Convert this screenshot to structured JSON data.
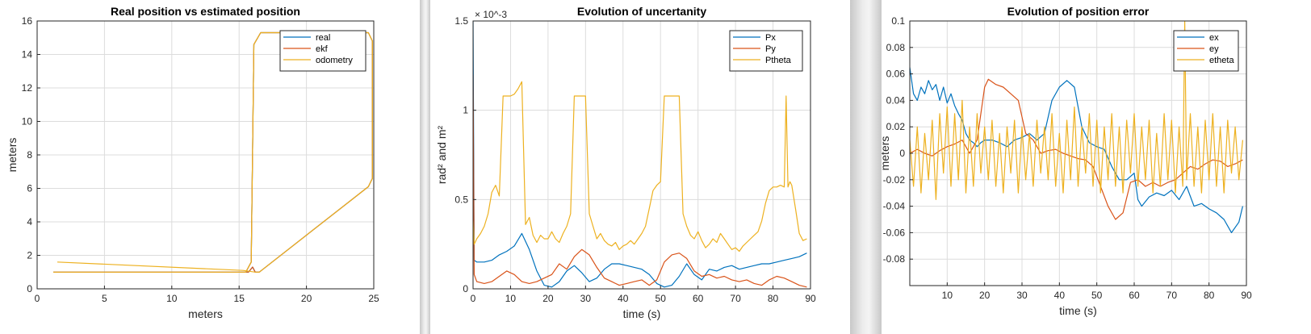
{
  "colors": {
    "blue": "#0072BD",
    "orange": "#D95319",
    "yellow": "#EDB120"
  },
  "chart_data": [
    {
      "type": "line",
      "title": "Real position vs estimated position",
      "xlabel": "meters",
      "ylabel": "meters",
      "xlim": [
        0,
        25
      ],
      "ylim": [
        0,
        16
      ],
      "xticks": [
        0,
        5,
        10,
        15,
        20,
        25
      ],
      "yticks": [
        0,
        2,
        4,
        6,
        8,
        10,
        12,
        14,
        16
      ],
      "xtick_labels": [
        "0",
        "5",
        "10",
        "15",
        "20",
        "25"
      ],
      "ytick_labels": [
        "0",
        "2",
        "4",
        "6",
        "8",
        "10",
        "12",
        "14",
        "16"
      ],
      "grid": true,
      "legend_position": "top-right",
      "series": [
        {
          "name": "real",
          "color": "#0072BD",
          "x": [
            1.2,
            15.5,
            15.9,
            16.1,
            16.6,
            24.6,
            24.9,
            24.9,
            24.6,
            16.5,
            16.2,
            16.0,
            15.7,
            1.2
          ],
          "y": [
            1.0,
            1.0,
            1.6,
            14.6,
            15.3,
            15.3,
            14.8,
            6.6,
            6.1,
            1.0,
            1.0,
            1.3,
            1.0,
            1.0
          ]
        },
        {
          "name": "ekf",
          "color": "#D95319",
          "x": [
            1.2,
            15.5,
            15.9,
            16.1,
            16.6,
            24.6,
            24.9,
            24.9,
            24.6,
            16.5,
            16.2,
            16.0,
            15.7,
            1.2
          ],
          "y": [
            1.0,
            1.0,
            1.6,
            14.6,
            15.3,
            15.3,
            14.8,
            6.6,
            6.1,
            1.0,
            1.0,
            1.3,
            1.0,
            1.0
          ]
        },
        {
          "name": "odometry",
          "color": "#EDB120",
          "x": [
            1.2,
            15.5,
            15.9,
            16.1,
            16.6,
            24.6,
            24.9,
            24.9,
            24.6,
            16.5,
            16.2,
            15.3,
            1.5
          ],
          "y": [
            1.0,
            1.0,
            1.6,
            14.6,
            15.3,
            15.3,
            14.8,
            6.6,
            6.1,
            1.0,
            1.0,
            1.1,
            1.6
          ]
        }
      ]
    },
    {
      "type": "line",
      "title": "Evolution of uncertanity",
      "xlabel": "time (s)",
      "ylabel": "rad² and m²",
      "y_exponent": "× 10^-3",
      "xlim": [
        0,
        90
      ],
      "ylim": [
        0,
        0.0015
      ],
      "xticks": [
        0,
        10,
        20,
        30,
        40,
        50,
        60,
        70,
        80,
        90
      ],
      "yticks": [
        0,
        0.0005,
        0.001,
        0.0015
      ],
      "xtick_labels": [
        "0",
        "10",
        "20",
        "30",
        "40",
        "50",
        "60",
        "70",
        "80",
        "90"
      ],
      "ytick_labels": [
        "0",
        "0.5",
        "1",
        "1.5"
      ],
      "grid": true,
      "legend_position": "top-right",
      "series": [
        {
          "name": "Px",
          "color": "#0072BD",
          "x": [
            0,
            0.3,
            1,
            3,
            5,
            7,
            9,
            11,
            13,
            15,
            17,
            19,
            21,
            23,
            25,
            27,
            29,
            31,
            33,
            35,
            37,
            39,
            41,
            43,
            45,
            47,
            49,
            51,
            53,
            55,
            57,
            59,
            61,
            63,
            65,
            67,
            69,
            71,
            73,
            75,
            77,
            79,
            81,
            83,
            85,
            87,
            89
          ],
          "y": [
            0.0015,
            0.00016,
            0.00015,
            0.00015,
            0.00016,
            0.00019,
            0.00021,
            0.00024,
            0.00031,
            0.00022,
            0.0001,
            2e-05,
            1e-05,
            4e-05,
            0.0001,
            0.00013,
            9e-05,
            4e-05,
            6e-05,
            0.00011,
            0.00014,
            0.00014,
            0.00013,
            0.00012,
            0.00011,
            8e-05,
            3e-05,
            1e-05,
            2e-05,
            7e-05,
            0.00014,
            8e-05,
            5e-05,
            0.00011,
            0.0001,
            0.00012,
            0.00013,
            0.00011,
            0.00012,
            0.00013,
            0.00014,
            0.00014,
            0.00015,
            0.00016,
            0.00017,
            0.00018,
            0.0002
          ]
        },
        {
          "name": "Py",
          "color": "#D95319",
          "x": [
            0,
            0.3,
            1,
            3,
            5,
            7,
            9,
            11,
            13,
            15,
            17,
            19,
            21,
            23,
            25,
            27,
            29,
            31,
            33,
            35,
            37,
            39,
            41,
            43,
            45,
            47,
            49,
            51,
            53,
            55,
            57,
            59,
            61,
            63,
            65,
            67,
            69,
            71,
            73,
            75,
            77,
            79,
            81,
            83,
            85,
            87,
            89
          ],
          "y": [
            0.0012,
            8e-05,
            4e-05,
            3e-05,
            4e-05,
            7e-05,
            0.0001,
            8e-05,
            4e-05,
            3e-05,
            4e-05,
            6e-05,
            8e-05,
            0.00014,
            0.00011,
            0.00018,
            0.00022,
            0.00019,
            0.00012,
            6e-05,
            4e-05,
            2e-05,
            3e-05,
            4e-05,
            5e-05,
            2e-05,
            5e-05,
            0.00015,
            0.00019,
            0.0002,
            0.00017,
            0.0001,
            7e-05,
            8e-05,
            6e-05,
            7e-05,
            5e-05,
            4e-05,
            5e-05,
            3e-05,
            2e-05,
            5e-05,
            7e-05,
            6e-05,
            4e-05,
            2e-05,
            1e-05
          ]
        },
        {
          "name": "Ptheta",
          "color": "#EDB120",
          "x": [
            0,
            0.3,
            1,
            2,
            3,
            4,
            5,
            6,
            7,
            8,
            9,
            10,
            11,
            12,
            13,
            14,
            15,
            16,
            17,
            18,
            19,
            20,
            21,
            22,
            23,
            24,
            25,
            26,
            27,
            28,
            29,
            30,
            31,
            32,
            33,
            34,
            35,
            36,
            37,
            38,
            39,
            40,
            41,
            42,
            43,
            44,
            45,
            46,
            47,
            48,
            49,
            50,
            51,
            52,
            53,
            54,
            55,
            56,
            57,
            58,
            59,
            60,
            61,
            62,
            63,
            64,
            65,
            66,
            67,
            68,
            69,
            70,
            71,
            72,
            73,
            74,
            75,
            76,
            77,
            78,
            79,
            80,
            81,
            82,
            83,
            83.5,
            84,
            84.5,
            85,
            86,
            87,
            88,
            89
          ],
          "y": [
            0.00038,
            0.00025,
            0.00028,
            0.00031,
            0.00035,
            0.00042,
            0.00054,
            0.00058,
            0.00052,
            0.00108,
            0.00108,
            0.00108,
            0.00109,
            0.00112,
            0.00116,
            0.00036,
            0.0004,
            0.0003,
            0.00026,
            0.0003,
            0.00028,
            0.00028,
            0.00032,
            0.00028,
            0.00026,
            0.00031,
            0.00035,
            0.00042,
            0.00108,
            0.00108,
            0.00108,
            0.00108,
            0.00042,
            0.00035,
            0.00028,
            0.00031,
            0.00027,
            0.00025,
            0.00024,
            0.00026,
            0.00022,
            0.00024,
            0.00025,
            0.00027,
            0.00025,
            0.00028,
            0.00031,
            0.00035,
            0.00045,
            0.00055,
            0.00058,
            0.0006,
            0.00108,
            0.00108,
            0.00108,
            0.00108,
            0.00108,
            0.00042,
            0.00035,
            0.0003,
            0.00028,
            0.00032,
            0.00027,
            0.00023,
            0.00025,
            0.00028,
            0.00026,
            0.00031,
            0.00028,
            0.00025,
            0.00022,
            0.00023,
            0.00021,
            0.00024,
            0.00026,
            0.00028,
            0.0003,
            0.00032,
            0.00038,
            0.00048,
            0.00055,
            0.00057,
            0.00057,
            0.00058,
            0.00057,
            0.00108,
            0.00057,
            0.0006,
            0.00058,
            0.00045,
            0.00031,
            0.00027,
            0.00028
          ]
        }
      ]
    },
    {
      "type": "line",
      "title": "Evolution of position error",
      "xlabel": "time (s)",
      "ylabel": "meters",
      "xlim": [
        0,
        90
      ],
      "ylim": [
        -0.1,
        0.1
      ],
      "xticks": [
        10,
        20,
        30,
        40,
        50,
        60,
        70,
        80,
        90
      ],
      "yticks": [
        -0.08,
        -0.06,
        -0.04,
        -0.02,
        0,
        0.02,
        0.04,
        0.06,
        0.08,
        0.1
      ],
      "xtick_labels": [
        "10",
        "20",
        "30",
        "40",
        "50",
        "60",
        "70",
        "80",
        "90"
      ],
      "ytick_labels": [
        "-0.08",
        "-0.06",
        "-0.04",
        "-0.02",
        "0",
        "0.02",
        "0.04",
        "0.06",
        "0.08",
        "0.1"
      ],
      "grid": true,
      "legend_position": "top-right",
      "series": [
        {
          "name": "ex",
          "color": "#0072BD",
          "x": [
            0,
            1,
            2,
            3,
            4,
            5,
            6,
            7,
            8,
            9,
            10,
            11,
            12,
            13,
            14,
            15,
            16,
            17,
            18,
            19,
            20,
            22,
            24,
            26,
            28,
            30,
            32,
            34,
            36,
            38,
            40,
            42,
            44,
            46,
            48,
            50,
            52,
            54,
            56,
            58,
            60,
            61,
            62,
            64,
            66,
            68,
            70,
            72,
            74,
            76,
            78,
            80,
            82,
            84,
            86,
            88,
            89
          ],
          "y": [
            0.065,
            0.045,
            0.04,
            0.05,
            0.045,
            0.055,
            0.048,
            0.052,
            0.04,
            0.05,
            0.038,
            0.045,
            0.036,
            0.03,
            0.025,
            0.015,
            0.01,
            0.008,
            0.005,
            0.008,
            0.01,
            0.01,
            0.008,
            0.005,
            0.01,
            0.012,
            0.015,
            0.01,
            0.015,
            0.04,
            0.05,
            0.055,
            0.05,
            0.02,
            0.008,
            0.005,
            0.003,
            -0.01,
            -0.02,
            -0.02,
            -0.015,
            -0.035,
            -0.04,
            -0.033,
            -0.03,
            -0.032,
            -0.028,
            -0.035,
            -0.025,
            -0.04,
            -0.038,
            -0.042,
            -0.045,
            -0.05,
            -0.06,
            -0.052,
            -0.04
          ]
        },
        {
          "name": "ey",
          "color": "#D95319",
          "x": [
            0,
            2,
            4,
            6,
            8,
            10,
            12,
            14,
            16,
            18,
            20,
            21,
            23,
            25,
            27,
            29,
            31,
            33,
            35,
            37,
            39,
            41,
            43,
            45,
            47,
            49,
            51,
            53,
            55,
            57,
            59,
            61,
            63,
            65,
            67,
            69,
            71,
            73,
            75,
            77,
            79,
            81,
            83,
            85,
            87,
            89
          ],
          "y": [
            0.0,
            0.003,
            0.0,
            -0.002,
            0.002,
            0.005,
            0.007,
            0.01,
            0.0,
            0.01,
            0.05,
            0.056,
            0.052,
            0.05,
            0.045,
            0.04,
            0.015,
            0.01,
            0.0,
            0.002,
            0.003,
            0.0,
            -0.002,
            -0.004,
            -0.005,
            -0.01,
            -0.025,
            -0.04,
            -0.05,
            -0.045,
            -0.022,
            -0.02,
            -0.025,
            -0.022,
            -0.025,
            -0.022,
            -0.02,
            -0.015,
            -0.01,
            -0.012,
            -0.008,
            -0.005,
            -0.006,
            -0.01,
            -0.008,
            -0.005
          ]
        },
        {
          "name": "etheta",
          "color": "#EDB120",
          "x": [
            0,
            1,
            2,
            3,
            4,
            5,
            6,
            7,
            8,
            9,
            10,
            11,
            12,
            13,
            14,
            15,
            16,
            17,
            18,
            19,
            20,
            21,
            22,
            23,
            24,
            25,
            26,
            27,
            28,
            29,
            30,
            31,
            32,
            33,
            34,
            35,
            36,
            37,
            38,
            39,
            40,
            41,
            42,
            43,
            44,
            45,
            46,
            47,
            48,
            49,
            50,
            51,
            52,
            53,
            54,
            55,
            56,
            57,
            58,
            59,
            60,
            61,
            62,
            63,
            64,
            65,
            66,
            67,
            68,
            69,
            70,
            71,
            72,
            73,
            73.5,
            74,
            75,
            76,
            77,
            78,
            79,
            80,
            81,
            82,
            83,
            84,
            85,
            86,
            87,
            88,
            89
          ],
          "y": [
            0.01,
            -0.025,
            0.02,
            -0.03,
            0.015,
            -0.02,
            0.025,
            -0.035,
            0.03,
            -0.015,
            0.035,
            -0.025,
            0.03,
            -0.02,
            0.04,
            -0.03,
            0.02,
            -0.025,
            0.03,
            -0.015,
            0.02,
            -0.02,
            0.025,
            -0.025,
            0.015,
            -0.03,
            0.02,
            -0.015,
            0.025,
            -0.03,
            0.02,
            -0.02,
            0.015,
            -0.025,
            0.025,
            -0.015,
            0.02,
            -0.02,
            0.03,
            -0.025,
            0.015,
            -0.03,
            0.025,
            -0.02,
            0.035,
            -0.025,
            0.02,
            -0.015,
            0.03,
            -0.025,
            0.025,
            -0.03,
            0.02,
            -0.02,
            0.03,
            -0.025,
            0.02,
            -0.03,
            0.025,
            -0.015,
            0.03,
            -0.025,
            0.02,
            -0.02,
            0.025,
            -0.03,
            0.015,
            -0.025,
            0.03,
            -0.02,
            0.025,
            -0.03,
            0.02,
            -0.025,
            0.1,
            -0.02,
            0.03,
            -0.025,
            0.02,
            -0.03,
            0.025,
            -0.02,
            0.03,
            -0.025,
            0.02,
            -0.03,
            0.025,
            -0.015,
            0.02,
            -0.02,
            0.01
          ]
        }
      ]
    }
  ]
}
